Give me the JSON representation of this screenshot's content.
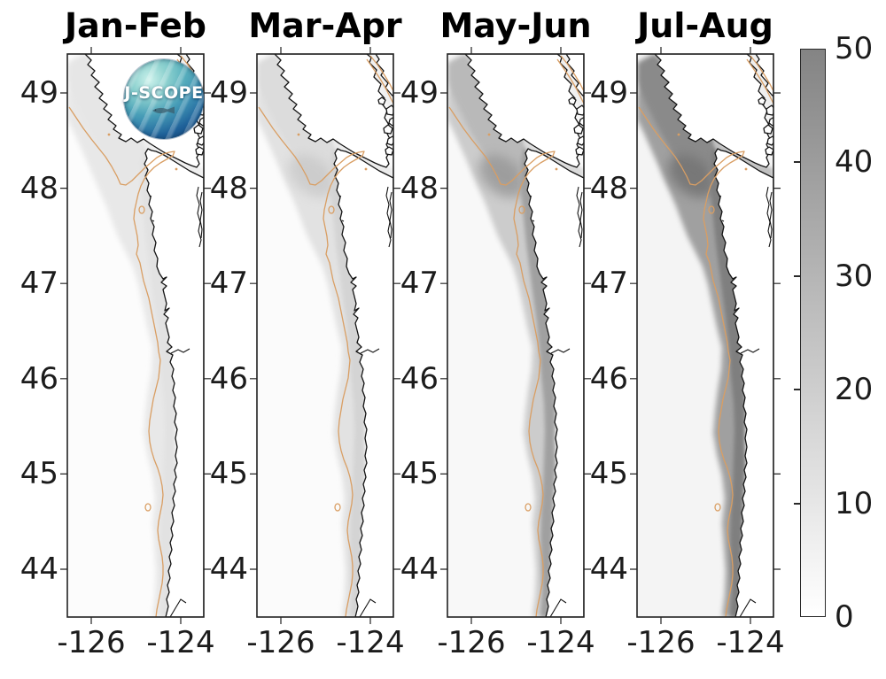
{
  "figure": {
    "background": "#ffffff"
  },
  "chart_data": {
    "type": "heatmap",
    "subtype": "geographic map panels (grayscale field over Pacific Northwest coast)",
    "title": "",
    "xlabel": "",
    "ylabel": "",
    "x_axis": {
      "tick_labels": [
        "-126",
        "-124"
      ],
      "range": [
        -126.55,
        -123.5
      ]
    },
    "y_axis": {
      "tick_labels": [
        "49",
        "48",
        "47",
        "46",
        "45",
        "44"
      ],
      "range": [
        43.5,
        49.41
      ]
    },
    "colorbar": {
      "min": 0,
      "max": 50,
      "tick_labels": [
        "0",
        "10",
        "20",
        "30",
        "40",
        "50"
      ],
      "colormap": "white (0) to gray (50)"
    },
    "panels": [
      {
        "title": "Jan-Feb",
        "approx_shelf_value": 2,
        "approx_nearshore_value": 4
      },
      {
        "title": "Mar-Apr",
        "approx_shelf_value": 6,
        "approx_nearshore_value": 10
      },
      {
        "title": "May-Jun",
        "approx_shelf_value": 18,
        "approx_nearshore_value": 30
      },
      {
        "title": "Jul-Aug",
        "approx_shelf_value": 35,
        "approx_nearshore_value": 45
      }
    ],
    "annotations": [
      "orange contour line follows the continental shelf break in every panel"
    ]
  },
  "panels": [
    {
      "title": "Jan-Feb",
      "wash": "#fcfcfc",
      "shelf": "#e8e8e8",
      "vi": "#e6e6e6",
      "near": "#e2e2e2",
      "canyon": "#dedede",
      "canyonOp": 0.0,
      "strait": "#efefef",
      "georgia": "#f0f0f0"
    },
    {
      "title": "Mar-Apr",
      "wash": "#fbfbfb",
      "shelf": "#e2e2e2",
      "vi": "#dcdcdc",
      "near": "#d4d4d4",
      "canyon": "#c6c6c6",
      "canyonOp": 0.7,
      "strait": "#ebebeb",
      "georgia": "#f0f0f0"
    },
    {
      "title": "May-Jun",
      "wash": "#f8f8f8",
      "shelf": "#cccccc",
      "vi": "#b9b9b9",
      "near": "#a0a0a0",
      "canyon": "#979797",
      "canyonOp": 0.8,
      "strait": "#dbdbdb",
      "georgia": "#efefef"
    },
    {
      "title": "Jul-Aug",
      "wash": "#f4f4f4",
      "shelf": "#a0a0a0",
      "vi": "#8a8a8a",
      "near": "#7f7f7f",
      "canyon": "#767676",
      "canyonOp": 0.9,
      "strait": "#c0c0c0",
      "georgia": "#eeeeee"
    }
  ],
  "axes": {
    "lat_labels": [
      "49",
      "48",
      "47",
      "46",
      "45",
      "44"
    ],
    "lon_labels": [
      "-126",
      "-124"
    ]
  },
  "colorbar": {
    "tick_labels": [
      "0",
      "10",
      "20",
      "30",
      "40",
      "50"
    ],
    "bottom_color": "#ffffff",
    "top_color": "#848484"
  },
  "colors": {
    "coastline": "#131313",
    "contour": "#d99e63",
    "tick_text": "#1c1c1c"
  },
  "logo": {
    "text": "J-SCOPE"
  }
}
